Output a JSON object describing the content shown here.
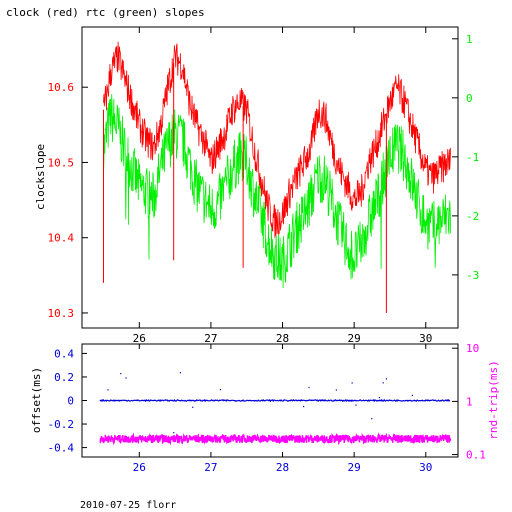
{
  "title": "clock (red) rtc (green) slopes",
  "footer": "2010-07-25 florr",
  "colors": {
    "clock": "#ff0000",
    "rtc": "#00ee00",
    "offset": "#0000dd",
    "rnd": "#ff00ff",
    "axis": "#000000"
  },
  "chart_data": [
    {
      "type": "line",
      "title": "clock (red) rtc (green) slopes",
      "ylabel": "clockslope",
      "x_ticks": [
        "26",
        "27",
        "28",
        "29",
        "30"
      ],
      "xlim": [
        25.2,
        30.45
      ],
      "ylim": [
        10.28,
        10.68
      ],
      "y_ticks": [
        "10.3",
        "10.4",
        "10.5",
        "10.6"
      ],
      "y2lim": [
        -3.9,
        1.2
      ],
      "y2_ticks": [
        "-3",
        "-2",
        "-1",
        "0",
        "1"
      ],
      "grid": false,
      "series": [
        {
          "name": "clock",
          "x": [
            25.5,
            25.55,
            25.6,
            25.7,
            25.8,
            25.9,
            26.0,
            26.1,
            26.2,
            26.3,
            26.4,
            26.5,
            26.6,
            26.7,
            26.8,
            26.9,
            27.0,
            27.1,
            27.2,
            27.3,
            27.4,
            27.5,
            27.6,
            27.7,
            27.8,
            27.9,
            28.0,
            28.1,
            28.2,
            28.3,
            28.4,
            28.5,
            28.6,
            28.7,
            28.8,
            28.9,
            29.0,
            29.1,
            29.2,
            29.3,
            29.4,
            29.5,
            29.6,
            29.7,
            29.8,
            29.9,
            30.0,
            30.1,
            30.2,
            30.3
          ],
          "values": [
            10.57,
            10.59,
            10.62,
            10.64,
            10.61,
            10.58,
            10.55,
            10.53,
            10.52,
            10.55,
            10.6,
            10.64,
            10.63,
            10.58,
            10.55,
            10.53,
            10.5,
            10.52,
            10.54,
            10.57,
            10.58,
            10.57,
            10.52,
            10.48,
            10.44,
            10.42,
            10.43,
            10.46,
            10.48,
            10.5,
            10.52,
            10.57,
            10.56,
            10.52,
            10.49,
            10.47,
            10.45,
            10.46,
            10.5,
            10.52,
            10.55,
            10.58,
            10.6,
            10.58,
            10.55,
            10.52,
            10.49,
            10.48,
            10.49,
            10.5
          ]
        },
        {
          "name": "rtc",
          "x": [
            25.5,
            25.55,
            25.6,
            25.7,
            25.8,
            25.9,
            26.0,
            26.1,
            26.2,
            26.3,
            26.4,
            26.5,
            26.6,
            26.7,
            26.8,
            26.9,
            27.0,
            27.1,
            27.2,
            27.3,
            27.4,
            27.5,
            27.6,
            27.7,
            27.8,
            27.9,
            28.0,
            28.1,
            28.2,
            28.3,
            28.4,
            28.5,
            28.6,
            28.7,
            28.8,
            28.9,
            29.0,
            29.1,
            29.2,
            29.3,
            29.4,
            29.5,
            29.6,
            29.7,
            29.8,
            29.9,
            30.0,
            30.1,
            30.2,
            30.3
          ],
          "values": [
            -0.9,
            -0.6,
            -0.3,
            -0.5,
            -0.9,
            -1.2,
            -1.5,
            -1.6,
            -1.7,
            -1.2,
            -0.8,
            -0.6,
            -0.7,
            -1.1,
            -1.5,
            -1.7,
            -1.9,
            -1.8,
            -1.5,
            -1.2,
            -1.0,
            -1.1,
            -1.6,
            -2.0,
            -2.4,
            -2.7,
            -2.8,
            -2.5,
            -2.2,
            -2.0,
            -1.7,
            -1.3,
            -1.4,
            -1.8,
            -2.2,
            -2.5,
            -2.7,
            -2.5,
            -2.1,
            -1.8,
            -1.4,
            -1.0,
            -0.8,
            -1.0,
            -1.4,
            -1.8,
            -2.1,
            -2.2,
            -2.1,
            -2.0
          ]
        }
      ]
    },
    {
      "type": "scatter",
      "ylabel": "offset(ms)",
      "y2label": "rnd-trip(ms)",
      "x_ticks": [
        "26",
        "27",
        "28",
        "29",
        "30"
      ],
      "xlim": [
        25.2,
        30.45
      ],
      "ylim": [
        -0.48,
        0.48
      ],
      "y_ticks": [
        "0.4",
        "0.2",
        "0",
        "-0.2",
        "-0.4"
      ],
      "y2_scale": "log",
      "y2lim": [
        0.09,
        12
      ],
      "y2_ticks": [
        "10",
        "1",
        "0.1"
      ],
      "series": [
        {
          "name": "offset",
          "x": [
            25.45,
            30.35
          ],
          "values": [
            0.0,
            0.0
          ]
        },
        {
          "name": "rnd-trip",
          "x": [
            25.45,
            30.35
          ],
          "values": [
            0.2,
            0.2
          ]
        }
      ]
    }
  ]
}
